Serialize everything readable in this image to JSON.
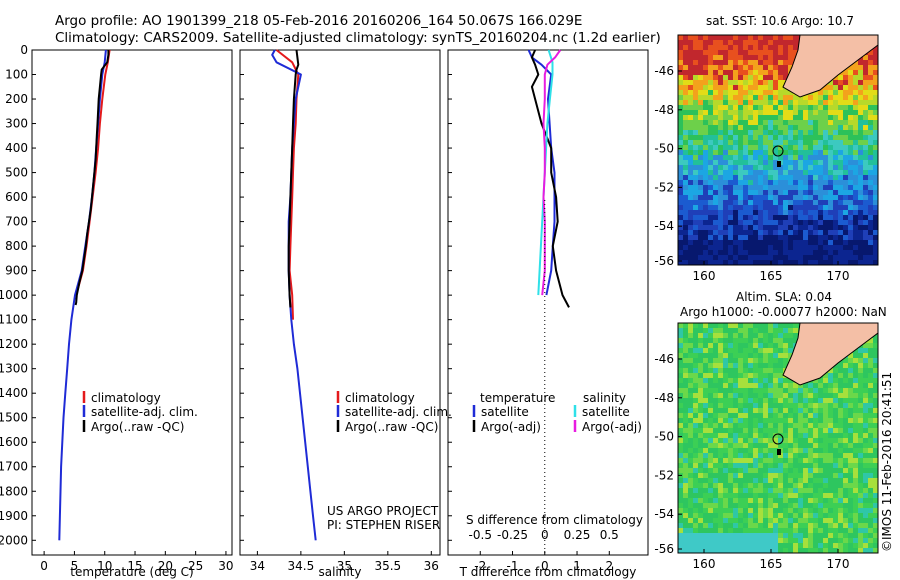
{
  "header": {
    "line1": "Argo profile: AO 1901399_218 05-Feb-2016 20160206_164 50.067S 166.029E",
    "line2": "Climatology: CARS2009. Satellite-adjusted climatology: synTS_20160204.nc (1.2d earlier)"
  },
  "colors": {
    "climatology": "#e41a1c",
    "satellite": "#1f2bd6",
    "argo": "#000000",
    "sat_salinity": "#2fe0e8",
    "argo_salinity": "#e81ce0"
  },
  "chart_data": [
    {
      "type": "line",
      "xlabel": "temperature (deg C)",
      "ylabel": "",
      "xlim": [
        -2,
        31
      ],
      "ylim": [
        2060,
        0
      ],
      "xticks": [
        "0",
        "5",
        "10",
        "15",
        "20",
        "25",
        "30"
      ],
      "yticks": [
        "0",
        "100",
        "200",
        "300",
        "400",
        "500",
        "600",
        "700",
        "800",
        "900",
        "1000",
        "1100",
        "1200",
        "1300",
        "1400",
        "1500",
        "1600",
        "1700",
        "1800",
        "1900",
        "2000"
      ],
      "legend": [
        "climatology",
        "satellite-adj. clim.",
        "Argo(..raw -QC)"
      ],
      "series": [
        {
          "name": "climatology",
          "depth": [
            0,
            50,
            100,
            200,
            300,
            400,
            500,
            600,
            700,
            800,
            900,
            1000
          ],
          "values": [
            10.8,
            10.5,
            10.1,
            9.6,
            9.2,
            8.9,
            8.5,
            8.0,
            7.5,
            7.0,
            6.4,
            5.3
          ]
        },
        {
          "name": "satellite-adj. clim.",
          "depth": [
            0,
            50,
            100,
            200,
            300,
            400,
            500,
            600,
            700,
            800,
            900,
            1000,
            1100,
            1200,
            1300,
            1400,
            1500,
            1600,
            1700,
            1800,
            1900,
            2000
          ],
          "values": [
            10.2,
            10.0,
            9.6,
            9.2,
            8.9,
            8.6,
            8.3,
            7.9,
            7.4,
            6.8,
            6.2,
            5.1,
            4.5,
            4.1,
            3.8,
            3.5,
            3.2,
            3.0,
            2.8,
            2.7,
            2.6,
            2.5
          ]
        },
        {
          "name": "Argo(..raw -QC)",
          "depth": [
            0,
            20,
            50,
            80,
            100,
            150,
            200,
            250,
            300,
            350,
            400,
            450,
            500,
            550,
            600,
            650,
            700,
            750,
            800,
            850,
            900,
            950,
            1000,
            1030,
            1040
          ],
          "values": [
            10.6,
            10.6,
            10.4,
            9.5,
            9.4,
            9.2,
            9.0,
            8.9,
            8.8,
            8.7,
            8.6,
            8.5,
            8.3,
            8.1,
            7.9,
            7.7,
            7.4,
            7.1,
            6.9,
            6.6,
            6.3,
            5.8,
            5.4,
            5.3,
            5.2
          ]
        }
      ]
    },
    {
      "type": "line",
      "xlabel": "salinity",
      "ylabel": "",
      "xlim": [
        33.8,
        36.1
      ],
      "ylim": [
        2060,
        0
      ],
      "xticks": [
        "34",
        "34.5",
        "35",
        "35.5",
        "36"
      ],
      "legend": [
        "climatology",
        "satellite-adj. clim.",
        "Argo(..raw -QC)"
      ],
      "series": [
        {
          "name": "climatology",
          "depth": [
            0,
            50,
            100,
            200,
            300,
            400,
            500,
            600,
            700,
            800,
            900,
            1000,
            1100
          ],
          "values": [
            34.22,
            34.4,
            34.47,
            34.45,
            34.44,
            34.42,
            34.41,
            34.4,
            34.39,
            34.38,
            34.37,
            34.4,
            34.41
          ]
        },
        {
          "name": "satellite-adj. clim.",
          "depth": [
            0,
            20,
            50,
            100,
            150,
            200,
            300,
            400,
            500,
            600,
            700,
            800,
            900,
            1000,
            1100,
            1200,
            1300,
            1400,
            1500,
            1600,
            1700,
            1800,
            1900,
            2000
          ],
          "values": [
            34.2,
            34.17,
            34.22,
            34.5,
            34.47,
            34.44,
            34.42,
            34.4,
            34.39,
            34.38,
            34.36,
            34.36,
            34.36,
            34.37,
            34.39,
            34.42,
            34.46,
            34.49,
            34.52,
            34.55,
            34.58,
            34.61,
            34.64,
            34.67
          ]
        },
        {
          "name": "Argo(..raw -QC)",
          "depth": [
            0,
            30,
            60,
            80,
            100,
            150,
            200,
            300,
            400,
            500,
            600,
            700,
            800,
            900,
            1000,
            1050
          ],
          "values": [
            34.45,
            34.46,
            34.47,
            34.45,
            34.44,
            34.43,
            34.42,
            34.41,
            34.4,
            34.39,
            34.38,
            34.37,
            34.36,
            34.36,
            34.37,
            34.38
          ]
        }
      ]
    },
    {
      "type": "line",
      "xlabel": "T difference from climatology",
      "xlabel_top": "S difference from climatology",
      "ylabel": "",
      "xlim": [
        -3,
        3.2
      ],
      "ylim": [
        2060,
        0
      ],
      "xticks": [
        "-2",
        "-1",
        "0",
        "1",
        "2"
      ],
      "xticks_top": [
        "-0.5",
        "-0.25",
        "0",
        "0.25",
        "0.5"
      ],
      "legend": [
        "temperature",
        "satellite",
        "Argo(-adj)",
        "salinity",
        "satellite",
        "Argo(-adj)"
      ],
      "series": [
        {
          "name": "temperature satellite",
          "depth": [
            0,
            30,
            60,
            100,
            200,
            300,
            400,
            500,
            600,
            700,
            800,
            900,
            1000
          ],
          "values": [
            -0.5,
            -0.4,
            -0.1,
            0.2,
            0.1,
            0.15,
            0.2,
            0.3,
            0.3,
            0.3,
            0.25,
            0.2,
            0.05
          ]
        },
        {
          "name": "temperature Argo(-adj)",
          "depth": [
            0,
            30,
            60,
            100,
            150,
            200,
            300,
            400,
            500,
            600,
            700,
            800,
            900,
            950,
            1000,
            1050
          ],
          "values": [
            -0.3,
            -0.4,
            -0.3,
            -0.2,
            -0.4,
            -0.3,
            -0.1,
            0.2,
            0.2,
            0.35,
            0.4,
            0.25,
            0.35,
            0.45,
            0.55,
            0.75
          ]
        },
        {
          "name": "salinity satellite",
          "depth": [
            0,
            50,
            100,
            200,
            300,
            400,
            500,
            600,
            700,
            800,
            900,
            1000
          ],
          "values": [
            0.03,
            0.06,
            0.06,
            0.04,
            0.02,
            0.01,
            0.0,
            -0.01,
            -0.02,
            -0.03,
            -0.04,
            -0.05
          ]
        },
        {
          "name": "salinity Argo(-adj)",
          "depth": [
            0,
            30,
            60,
            100,
            200,
            300,
            400,
            500,
            600,
            700,
            800,
            900,
            1000
          ],
          "values": [
            0.12,
            0.08,
            0.02,
            0.0,
            0.0,
            -0.01,
            0.0,
            0.0,
            -0.01,
            0.0,
            0.0,
            0.0,
            -0.02
          ]
        }
      ]
    }
  ],
  "panels": {
    "legend1": [
      "climatology",
      "satellite-adj. clim.",
      "Argo(..raw -QC)"
    ],
    "legend2": [
      "climatology",
      "satellite-adj. clim.",
      "Argo(..raw -QC)"
    ],
    "legend3_left_title": "temperature",
    "legend3_left": [
      "satellite",
      "Argo(-adj)"
    ],
    "legend3_right_title": "salinity",
    "legend3_right": [
      "satellite",
      "Argo(-adj)"
    ],
    "credit1": "US ARGO PROJECT",
    "credit2": "PI: STEPHEN RISER",
    "map_top_title": "sat. SST: 10.6 Argo: 10.7",
    "map_bottom_title1": "Altim. SLA: 0.04",
    "map_bottom_title2": "Argo h1000: -0.00077 h2000: NaN",
    "map_yticks": [
      "-46",
      "-48",
      "-50",
      "-52",
      "-54",
      "-56"
    ],
    "map_xticks": [
      "160",
      "165",
      "170"
    ],
    "imos": "©IMOS 11-Feb-2016 20:41:51"
  }
}
